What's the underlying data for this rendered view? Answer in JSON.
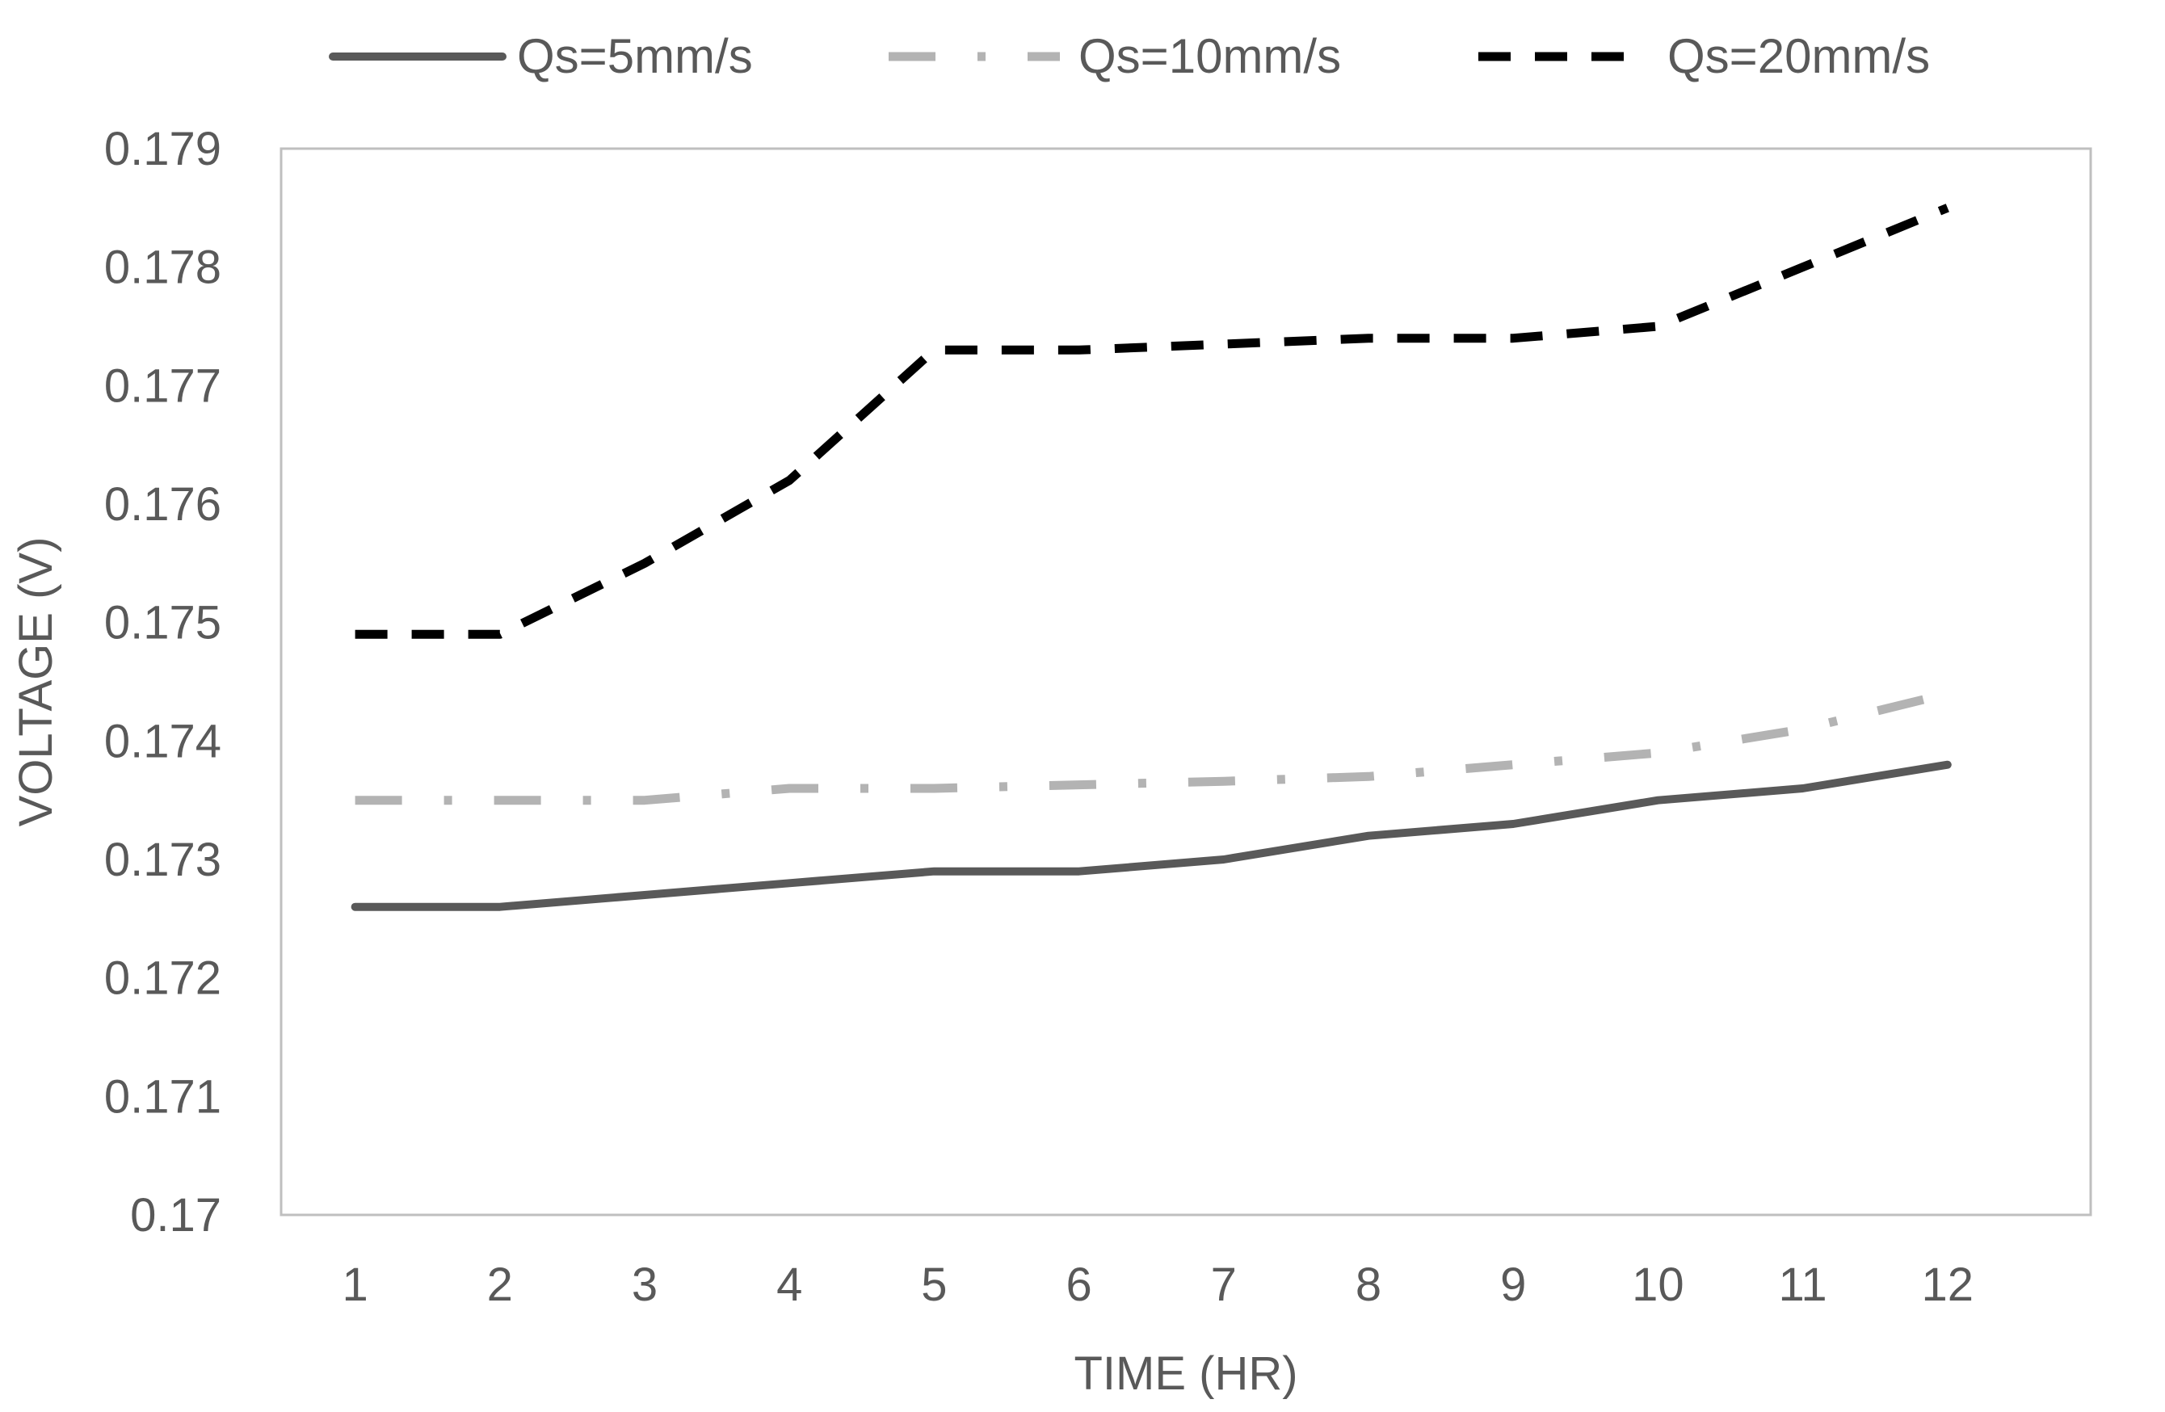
{
  "chart_data": {
    "type": "line",
    "title": "",
    "xlabel": "TIME (HR)",
    "ylabel": "VOLTAGE (V)",
    "categories": [
      "1",
      "2",
      "3",
      "4",
      "5",
      "6",
      "7",
      "8",
      "9",
      "10",
      "11",
      "12"
    ],
    "ylim": [
      0.17,
      0.179
    ],
    "yticks": [
      0.17,
      0.171,
      0.172,
      0.173,
      0.174,
      0.175,
      0.176,
      0.177,
      0.178,
      0.179
    ],
    "ytick_labels": [
      "0.17",
      "0.171",
      "0.172",
      "0.173",
      "0.174",
      "0.175",
      "0.176",
      "0.177",
      "0.178",
      "0.179"
    ],
    "grid": false,
    "legend_position": "top",
    "series": [
      {
        "name": "Qs=5mm/s",
        "style": "solid",
        "color": "#595959",
        "values": [
          0.1726,
          0.1726,
          0.1727,
          0.1728,
          0.1729,
          0.1729,
          0.173,
          0.1732,
          0.1733,
          0.1735,
          0.1736,
          0.1738
        ]
      },
      {
        "name": "Qs=10mm/s",
        "style": "dashdot",
        "color": "#b3b3b3",
        "values": [
          0.1735,
          0.1735,
          0.1735,
          0.1736,
          0.1736,
          0.17363,
          0.17366,
          0.1737,
          0.1738,
          0.1739,
          0.1741,
          0.1744
        ]
      },
      {
        "name": "Qs=20mm/s",
        "style": "dashed",
        "color": "#000000",
        "values": [
          0.1749,
          0.1749,
          0.1755,
          0.1762,
          0.1773,
          0.1773,
          0.17735,
          0.1774,
          0.1774,
          0.1775,
          0.178,
          0.1785
        ]
      }
    ]
  }
}
